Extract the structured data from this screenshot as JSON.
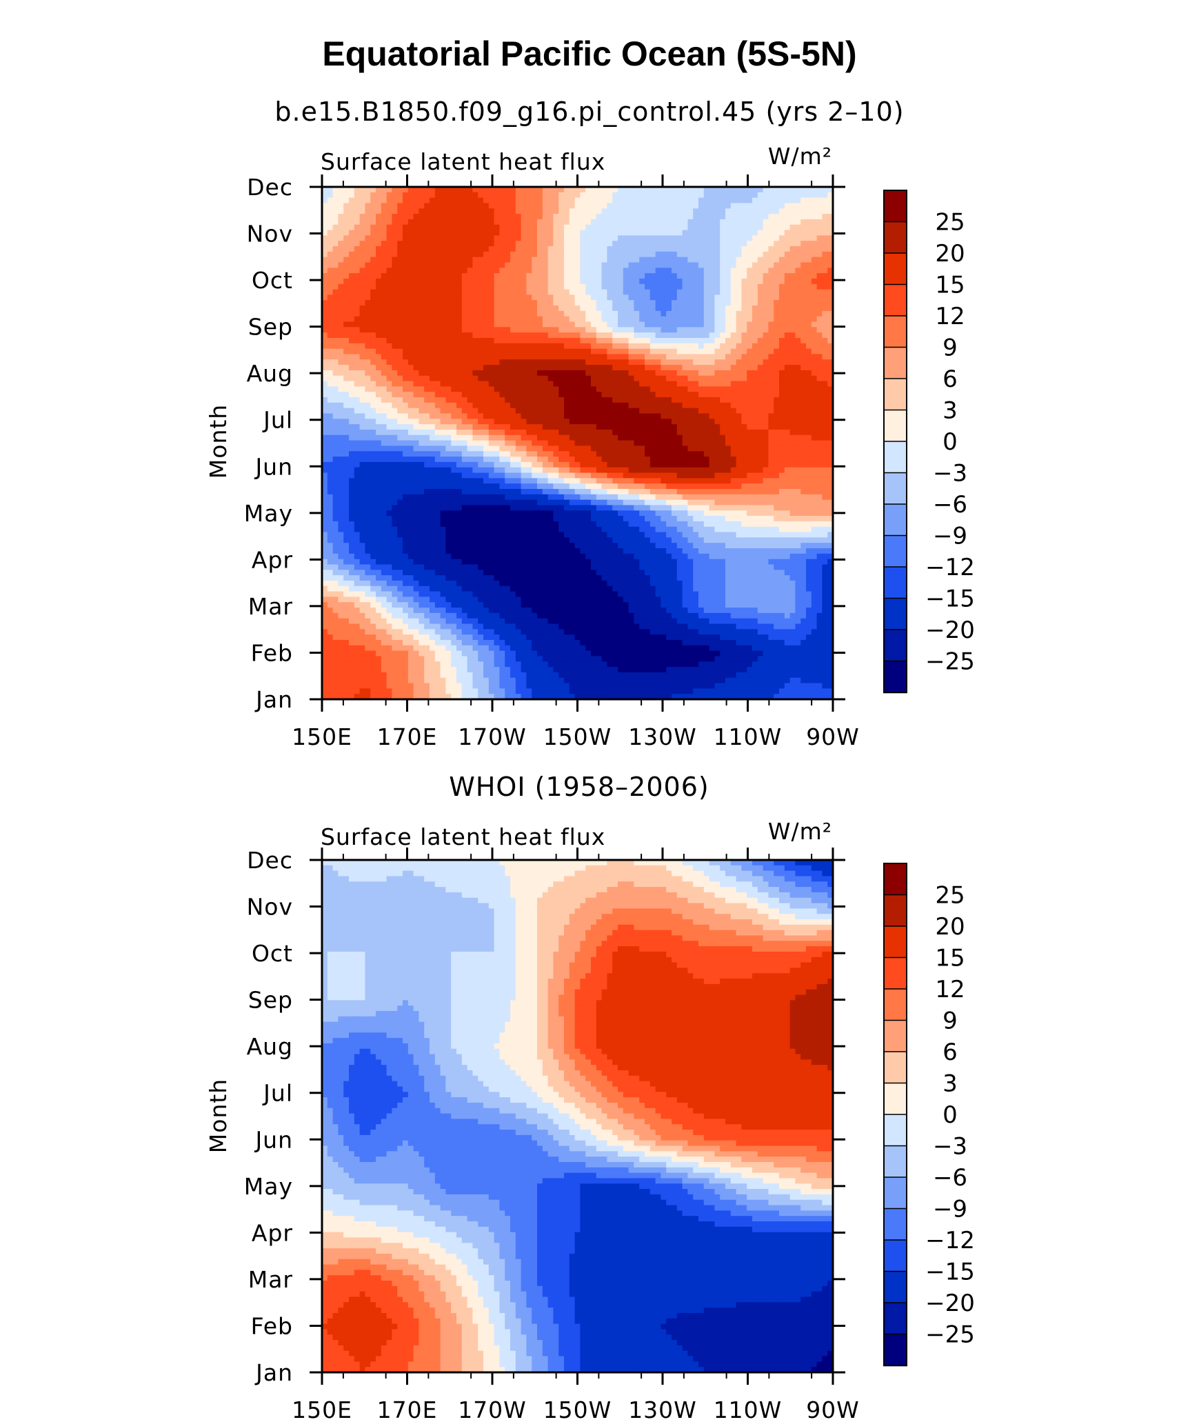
{
  "title": "Equatorial Pacific Ocean (5S-5N)",
  "colors": [
    "#00007f",
    "#0019a6",
    "#0032c8",
    "#1e50f0",
    "#4a7afa",
    "#78a0fa",
    "#a6c4fa",
    "#d2e6ff",
    "#fff0e0",
    "#ffcaaa",
    "#ffa078",
    "#ff7846",
    "#ff4b1e",
    "#e63200",
    "#b41e00",
    "#8c0000"
  ],
  "colorbar_labels": [
    "25",
    "20",
    "15",
    "12",
    "9",
    "6",
    "3",
    "0",
    "−3",
    "−6",
    "−9",
    "−12",
    "−15",
    "−20",
    "−25"
  ],
  "chart_data": [
    {
      "type": "heatmap",
      "title": "b.e15.B1850.f09_g16.pi_control.45 (yrs 2–10)",
      "left_label": "Surface latent heat flux",
      "units": "W/m²",
      "ylabel": "Month",
      "x": [
        "150E",
        "170E",
        "170W",
        "150W",
        "130W",
        "110W",
        "90W"
      ],
      "y": [
        "Jan",
        "Feb",
        "Mar",
        "Apr",
        "May",
        "Jun",
        "Jul",
        "Aug",
        "Sep",
        "Oct",
        "Nov",
        "Dec"
      ],
      "levels": [
        -25,
        -20,
        -15,
        -12,
        -9,
        -6,
        -3,
        0,
        3,
        6,
        9,
        12,
        15,
        20,
        25
      ],
      "z": [
        [
          12,
          16,
          10,
          3,
          -6,
          -15,
          -20,
          -22,
          -20,
          -18,
          -16,
          -14,
          -14
        ],
        [
          14,
          13,
          9,
          0,
          -9,
          -20,
          -24,
          -27,
          -28,
          -27,
          -22,
          -16,
          -18
        ],
        [
          10,
          5,
          -6,
          -14,
          -22,
          -26,
          -28,
          -26,
          -20,
          -10,
          -8,
          -7,
          -18
        ],
        [
          -6,
          -14,
          -20,
          -25,
          -27,
          -28,
          -26,
          -22,
          -17,
          -10,
          -8,
          -10,
          -16
        ],
        [
          -10,
          -18,
          -22,
          -26,
          -28,
          -27,
          -22,
          -15,
          -8,
          0,
          3,
          6,
          8
        ],
        [
          -12,
          -16,
          -17,
          -14,
          -8,
          3,
          14,
          22,
          26,
          26,
          18,
          12,
          12
        ],
        [
          -8,
          -4,
          2,
          8,
          16,
          22,
          26,
          27,
          26,
          22,
          14,
          16,
          18
        ],
        [
          2,
          6,
          14,
          18,
          22,
          25,
          26,
          22,
          14,
          8,
          12,
          16,
          14
        ],
        [
          14,
          16,
          18,
          16,
          12,
          10,
          6,
          -3,
          -8,
          -6,
          6,
          12,
          6
        ],
        [
          10,
          14,
          17,
          16,
          12,
          8,
          0,
          -6,
          -12,
          -6,
          4,
          10,
          14
        ],
        [
          2,
          8,
          16,
          18,
          16,
          10,
          0,
          -3,
          -2,
          -4,
          -1,
          4,
          6
        ],
        [
          -2,
          4,
          12,
          16,
          14,
          10,
          4,
          0,
          -1,
          -3,
          -4,
          -2,
          -1
        ]
      ]
    },
    {
      "type": "heatmap",
      "title": "WHOI (1958–2006)",
      "left_label": "Surface latent heat flux",
      "units": "W/m²",
      "ylabel": "Month",
      "x": [
        "150E",
        "170E",
        "170W",
        "150W",
        "130W",
        "110W",
        "90W"
      ],
      "y": [
        "Jan",
        "Feb",
        "Mar",
        "Apr",
        "May",
        "Jun",
        "Jul",
        "Aug",
        "Sep",
        "Oct",
        "Nov",
        "Dec"
      ],
      "levels": [
        -25,
        -20,
        -15,
        -12,
        -9,
        -6,
        -3,
        0,
        3,
        6,
        9,
        12,
        15,
        20,
        25
      ],
      "z": [
        [
          12,
          15,
          12,
          8,
          2,
          -6,
          -15,
          -18,
          -18,
          -20,
          -22,
          -24,
          -26
        ],
        [
          15,
          18,
          14,
          8,
          0,
          -9,
          -15,
          -18,
          -20,
          -22,
          -22,
          -24,
          -24
        ],
        [
          12,
          14,
          10,
          4,
          -3,
          -12,
          -16,
          -20,
          -18,
          -16,
          -18,
          -16,
          -20
        ],
        [
          3,
          2,
          0,
          -3,
          -6,
          -12,
          -15,
          -17,
          -18,
          -17,
          -16,
          -15,
          -16
        ],
        [
          -3,
          -6,
          -6,
          -10,
          -10,
          -12,
          -15,
          -16,
          -14,
          -9,
          -3,
          1,
          5
        ],
        [
          -6,
          -12,
          -9,
          -12,
          -12,
          -9,
          -3,
          3,
          9,
          12,
          14,
          14,
          14
        ],
        [
          -9,
          -15,
          -12,
          -6,
          -3,
          0,
          6,
          12,
          15,
          18,
          19,
          18,
          18
        ],
        [
          -9,
          -12,
          -9,
          -3,
          0,
          3,
          12,
          18,
          20,
          18,
          19,
          20,
          22
        ],
        [
          -3,
          -3,
          -6,
          -3,
          -3,
          3,
          13,
          17,
          18,
          16,
          17,
          20,
          23
        ],
        [
          -3,
          -3,
          -3,
          -3,
          -3,
          3,
          9,
          16,
          15,
          13,
          13,
          12,
          16
        ],
        [
          -6,
          -6,
          -6,
          -4,
          -3,
          3,
          6,
          9,
          9,
          6,
          3,
          -3,
          -6
        ],
        [
          -3,
          0,
          -2,
          -1,
          0,
          1,
          2,
          3,
          2,
          -3,
          -9,
          -15,
          -20
        ]
      ]
    }
  ]
}
